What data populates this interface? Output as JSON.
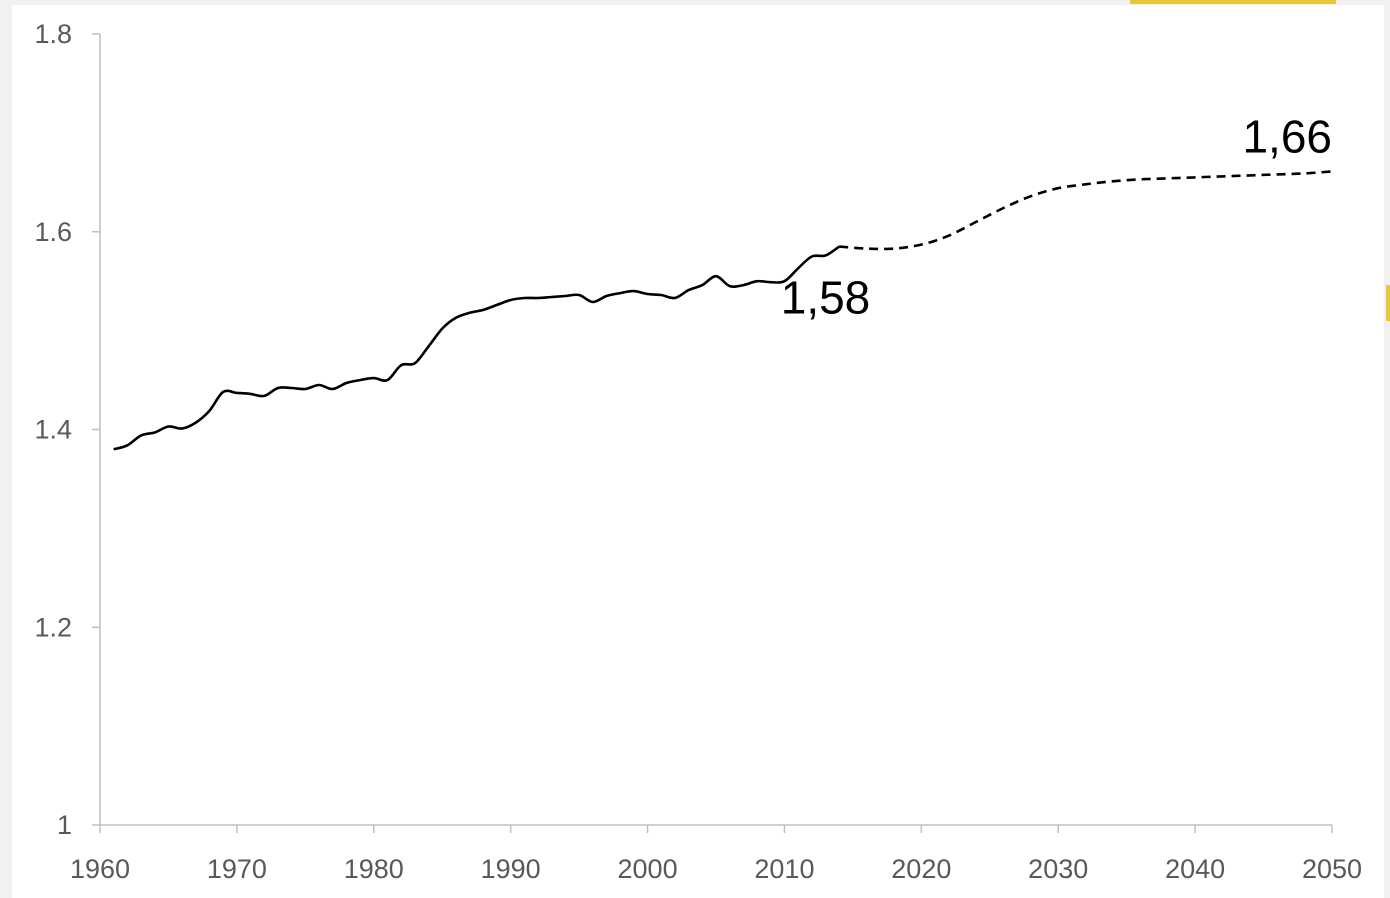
{
  "colors": {
    "accent": "#e6c93a",
    "axis": "#bfbfbf",
    "tick_text": "#595959",
    "series": "#000000"
  },
  "chart_data": {
    "type": "line",
    "xlim": [
      1960,
      2050
    ],
    "ylim": [
      1,
      1.8
    ],
    "x_ticks": [
      1960,
      1970,
      1980,
      1990,
      2000,
      2010,
      2020,
      2030,
      2040,
      2050
    ],
    "x_tick_labels": [
      "1960",
      "1970",
      "1980",
      "1990",
      "2000",
      "2010",
      "2020",
      "2030",
      "2040",
      "2050"
    ],
    "y_ticks": [
      1,
      1.2,
      1.4,
      1.6,
      1.8
    ],
    "y_tick_labels": [
      "1",
      "1.2",
      "1.4",
      "1.6",
      "1.8"
    ],
    "grid": false,
    "legend": "none",
    "series": [
      {
        "style": "solid",
        "x": [
          1961,
          1962,
          1963,
          1964,
          1965,
          1966,
          1967,
          1968,
          1969,
          1970,
          1971,
          1972,
          1973,
          1974,
          1975,
          1976,
          1977,
          1978,
          1979,
          1980,
          1981,
          1982,
          1983,
          1984,
          1985,
          1986,
          1987,
          1988,
          1989,
          1990,
          1991,
          1992,
          1993,
          1994,
          1995,
          1996,
          1997,
          1998,
          1999,
          2000,
          2001,
          2002,
          2003,
          2004,
          2005,
          2006,
          2007,
          2008,
          2009,
          2010,
          2011,
          2012,
          2013,
          2014
        ],
        "y": [
          1.38,
          1.384,
          1.394,
          1.397,
          1.403,
          1.401,
          1.407,
          1.419,
          1.438,
          1.437,
          1.436,
          1.434,
          1.442,
          1.442,
          1.441,
          1.445,
          1.441,
          1.447,
          1.45,
          1.452,
          1.45,
          1.465,
          1.467,
          1.484,
          1.502,
          1.513,
          1.518,
          1.521,
          1.526,
          1.531,
          1.533,
          1.533,
          1.534,
          1.535,
          1.536,
          1.529,
          1.535,
          1.538,
          1.54,
          1.537,
          1.536,
          1.533,
          1.541,
          1.546,
          1.555,
          1.545,
          1.546,
          1.55,
          1.549,
          1.55,
          1.563,
          1.575,
          1.576,
          1.585
        ]
      },
      {
        "style": "dashed",
        "x": [
          2014,
          2016,
          2018,
          2020,
          2022,
          2024,
          2026,
          2028,
          2030,
          2032,
          2034,
          2036,
          2038,
          2040,
          2042,
          2044,
          2046,
          2048,
          2050
        ],
        "y": [
          1.585,
          1.583,
          1.583,
          1.587,
          1.596,
          1.61,
          1.624,
          1.636,
          1.644,
          1.648,
          1.651,
          1.653,
          1.654,
          1.655,
          1.656,
          1.657,
          1.658,
          1.659,
          1.661
        ]
      }
    ],
    "annotations": [
      {
        "text": "1,58",
        "x": 2013,
        "y": 1.58
      },
      {
        "text": "1,66",
        "x": 2050,
        "y": 1.66
      }
    ]
  }
}
